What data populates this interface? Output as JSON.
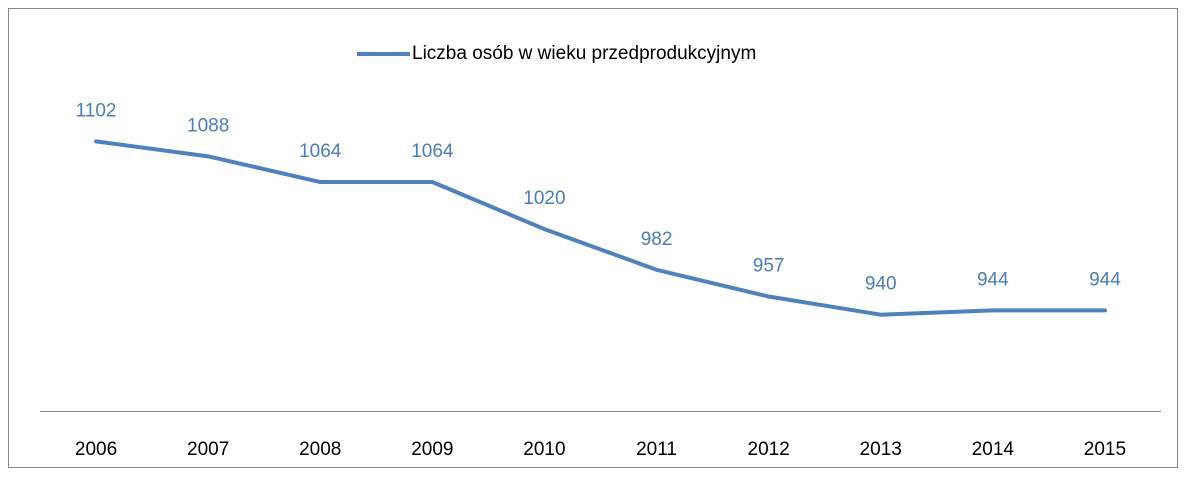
{
  "chart_data": {
    "type": "line",
    "categories": [
      "2006",
      "2007",
      "2008",
      "2009",
      "2010",
      "2011",
      "2012",
      "2013",
      "2014",
      "2015"
    ],
    "series": [
      {
        "name": "Liczba osób w wieku przedprodukcyjnym",
        "color": "#4f81bd",
        "values": [
          1102,
          1088,
          1064,
          1064,
          1020,
          982,
          957,
          940,
          944,
          944
        ]
      }
    ],
    "ylim": [
      850,
      1150
    ],
    "legend": "top"
  }
}
